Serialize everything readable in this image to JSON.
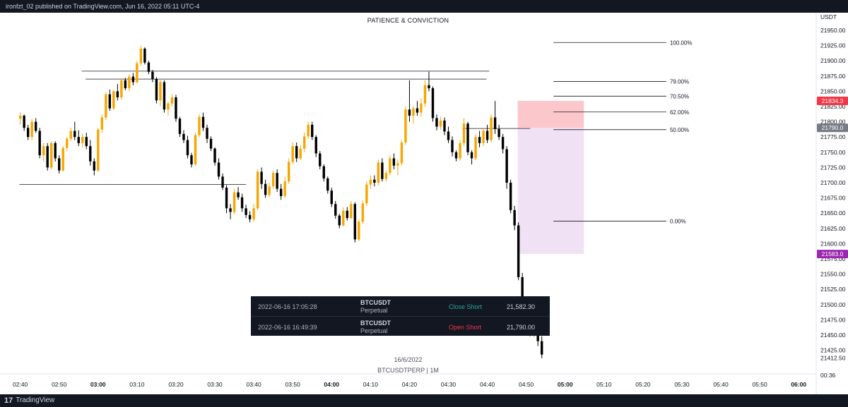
{
  "header": {
    "published_text": "ironfzt_02 published on TradingView.com, Jun 16, 2022 05:11 UTC-4"
  },
  "footer": {
    "brand": "TradingView"
  },
  "chart_data": {
    "type": "candlestick",
    "title": "PATIENCE & CONVICTION",
    "symbol_line": "BTCUSDTPERP | 1M",
    "date_line": "16/6/2022",
    "currency_label": "USDT",
    "time_label": "00:36",
    "ylim": [
      21410,
      21970
    ],
    "y_ticks": [
      21950,
      21925,
      21900,
      21875,
      21850,
      21825,
      21800,
      21775,
      21750,
      21725,
      21700,
      21675,
      21650,
      21625,
      21600,
      21575,
      21550,
      21525,
      21500,
      21475,
      21450,
      21425,
      21412.5
    ],
    "y_tick_labels": [
      "21950.00",
      "21925.00",
      "21900.00",
      "21875.00",
      "21850.00",
      "21825.00",
      "21800.00",
      "21775.00",
      "21750.00",
      "21725.00",
      "21700.00",
      "21675.00",
      "21650.00",
      "21625.00",
      "21600.00",
      "21575.00",
      "21550.00",
      "21525.00",
      "21500.00",
      "21475.00",
      "21450.00",
      "21425.00",
      "21412.50"
    ],
    "x_ticks": [
      {
        "label": "02:40",
        "x": 0,
        "bold": false
      },
      {
        "label": "02:50",
        "x": 10,
        "bold": false
      },
      {
        "label": "03:00",
        "x": 20,
        "bold": true
      },
      {
        "label": "03:10",
        "x": 30,
        "bold": false
      },
      {
        "label": "03:20",
        "x": 40,
        "bold": false
      },
      {
        "label": "03:30",
        "x": 50,
        "bold": false
      },
      {
        "label": "03:40",
        "x": 60,
        "bold": false
      },
      {
        "label": "03:50",
        "x": 70,
        "bold": false
      },
      {
        "label": "04:00",
        "x": 80,
        "bold": true
      },
      {
        "label": "04:10",
        "x": 90,
        "bold": false
      },
      {
        "label": "04:20",
        "x": 100,
        "bold": false
      },
      {
        "label": "04:30",
        "x": 110,
        "bold": false
      },
      {
        "label": "04:40",
        "x": 120,
        "bold": false
      },
      {
        "label": "04:50",
        "x": 130,
        "bold": false
      },
      {
        "label": "05:00",
        "x": 140,
        "bold": true
      },
      {
        "label": "05:10",
        "x": 150,
        "bold": false
      },
      {
        "label": "05:20",
        "x": 160,
        "bold": false
      },
      {
        "label": "05:30",
        "x": 170,
        "bold": false
      },
      {
        "label": "05:40",
        "x": 180,
        "bold": false
      },
      {
        "label": "05:50",
        "x": 190,
        "bold": false
      },
      {
        "label": "06:00",
        "x": 200,
        "bold": true
      }
    ],
    "x_range": [
      -5.2,
      204.5
    ],
    "price_badges": [
      {
        "label": "21834.3",
        "value": 21834.3,
        "color": "#f23645"
      },
      {
        "label": "21790.0",
        "value": 21790,
        "color": "#787b86"
      },
      {
        "label": "21583.0",
        "value": 21583,
        "color": "#9c27b0"
      }
    ],
    "fib_levels": [
      {
        "label": "100.00%",
        "value": 21930
      },
      {
        "label": "79.00%",
        "value": 21866
      },
      {
        "label": "70.50%",
        "value": 21842
      },
      {
        "label": "62.00%",
        "value": 21816
      },
      {
        "label": "50.00%",
        "value": 21787
      },
      {
        "label": "0.00%",
        "value": 21637
      }
    ],
    "fib_x_range": [
      137,
      166
    ],
    "horizontal_lines": [
      {
        "x1": 15.8,
        "x2": 120.5,
        "value": 21883
      },
      {
        "x1": 16.8,
        "x2": 119.8,
        "value": 21870
      },
      {
        "x1": -0.2,
        "x2": 58,
        "value": 21697
      },
      {
        "x1": 113.6,
        "x2": 131,
        "value": 21789
      }
    ],
    "short_position": {
      "x1": 127.8,
      "x2": 144.8,
      "entry": 21790,
      "stop": 21834.3,
      "target": 21583
    },
    "trades": [
      {
        "time": "2022-06-16 17:05:28",
        "symbol": "BTCUSDT",
        "type": "Perpetual",
        "action": "Close Short",
        "price": "21,582.30",
        "action_color": "#26a69a"
      },
      {
        "time": "2022-06-16 16:49:39",
        "symbol": "BTCUSDT",
        "type": "Perpetual",
        "action": "Open Short",
        "price": "21,790.00",
        "action_color": "#f23645"
      }
    ],
    "bull_color": "#f7a600",
    "bear_color": "#000000",
    "candles": [
      [
        21805,
        21815,
        21795,
        21810
      ],
      [
        21810,
        21812,
        21785,
        21790
      ],
      [
        21790,
        21795,
        21770,
        21775
      ],
      [
        21775,
        21805,
        21770,
        21800
      ],
      [
        21800,
        21806,
        21782,
        21785
      ],
      [
        21785,
        21790,
        21740,
        21745
      ],
      [
        21745,
        21765,
        21735,
        21760
      ],
      [
        21760,
        21765,
        21720,
        21725
      ],
      [
        21725,
        21768,
        21722,
        21765
      ],
      [
        21765,
        21768,
        21735,
        21740
      ],
      [
        21740,
        21745,
        21715,
        21720
      ],
      [
        21720,
        21760,
        21718,
        21757
      ],
      [
        21757,
        21775,
        21752,
        21772
      ],
      [
        21772,
        21790,
        21768,
        21785
      ],
      [
        21785,
        21800,
        21770,
        21775
      ],
      [
        21775,
        21786,
        21760,
        21765
      ],
      [
        21765,
        21780,
        21758,
        21775
      ],
      [
        21775,
        21782,
        21755,
        21760
      ],
      [
        21760,
        21770,
        21728,
        21735
      ],
      [
        21735,
        21740,
        21712,
        21720
      ],
      [
        21720,
        21790,
        21718,
        21787
      ],
      [
        21787,
        21812,
        21782,
        21807
      ],
      [
        21807,
        21848,
        21803,
        21845
      ],
      [
        21845,
        21853,
        21818,
        21822
      ],
      [
        21822,
        21852,
        21819,
        21850
      ],
      [
        21850,
        21862,
        21835,
        21840
      ],
      [
        21840,
        21872,
        21836,
        21868
      ],
      [
        21868,
        21872,
        21852,
        21855
      ],
      [
        21855,
        21878,
        21850,
        21874
      ],
      [
        21874,
        21880,
        21860,
        21865
      ],
      [
        21865,
        21900,
        21863,
        21896
      ],
      [
        21896,
        21925,
        21892,
        21920
      ],
      [
        21920,
        21922,
        21894,
        21897
      ],
      [
        21897,
        21900,
        21878,
        21882
      ],
      [
        21882,
        21885,
        21865,
        21870
      ],
      [
        21870,
        21873,
        21830,
        21835
      ],
      [
        21835,
        21870,
        21826,
        21865
      ],
      [
        21865,
        21868,
        21815,
        21820
      ],
      [
        21820,
        21833,
        21810,
        21830
      ],
      [
        21830,
        21845,
        21825,
        21840
      ],
      [
        21840,
        21844,
        21800,
        21805
      ],
      [
        21805,
        21808,
        21775,
        21780
      ],
      [
        21780,
        21786,
        21765,
        21770
      ],
      [
        21770,
        21777,
        21740,
        21745
      ],
      [
        21745,
        21749,
        21725,
        21730
      ],
      [
        21730,
        21782,
        21728,
        21778
      ],
      [
        21778,
        21812,
        21775,
        21808
      ],
      [
        21808,
        21815,
        21785,
        21790
      ],
      [
        21790,
        21795,
        21765,
        21772
      ],
      [
        21772,
        21776,
        21752,
        21756
      ],
      [
        21756,
        21758,
        21728,
        21733
      ],
      [
        21733,
        21740,
        21705,
        21710
      ],
      [
        21710,
        21715,
        21688,
        21692
      ],
      [
        21692,
        21696,
        21650,
        21658
      ],
      [
        21658,
        21665,
        21640,
        21652
      ],
      [
        21652,
        21690,
        21648,
        21684
      ],
      [
        21684,
        21693,
        21672,
        21676
      ],
      [
        21676,
        21682,
        21652,
        21658
      ],
      [
        21658,
        21664,
        21642,
        21647
      ],
      [
        21647,
        21653,
        21635,
        21640
      ],
      [
        21640,
        21665,
        21636,
        21658
      ],
      [
        21658,
        21722,
        21655,
        21718
      ],
      [
        21718,
        21725,
        21690,
        21698
      ],
      [
        21698,
        21705,
        21675,
        21680
      ],
      [
        21680,
        21700,
        21676,
        21694
      ],
      [
        21694,
        21720,
        21690,
        21716
      ],
      [
        21716,
        21722,
        21685,
        21690
      ],
      [
        21690,
        21698,
        21672,
        21678
      ],
      [
        21678,
        21710,
        21675,
        21702
      ],
      [
        21702,
        21740,
        21698,
        21734
      ],
      [
        21734,
        21766,
        21730,
        21760
      ],
      [
        21760,
        21766,
        21734,
        21740
      ],
      [
        21740,
        21762,
        21737,
        21756
      ],
      [
        21756,
        21782,
        21750,
        21776
      ],
      [
        21776,
        21800,
        21772,
        21795
      ],
      [
        21795,
        21800,
        21770,
        21775
      ],
      [
        21775,
        21778,
        21742,
        21748
      ],
      [
        21748,
        21752,
        21722,
        21727
      ],
      [
        21727,
        21730,
        21702,
        21707
      ],
      [
        21707,
        21710,
        21682,
        21687
      ],
      [
        21687,
        21692,
        21660,
        21665
      ],
      [
        21665,
        21670,
        21641,
        21646
      ],
      [
        21646,
        21649,
        21625,
        21630
      ],
      [
        21630,
        21660,
        21628,
        21654
      ],
      [
        21654,
        21660,
        21638,
        21642
      ],
      [
        21642,
        21670,
        21640,
        21665
      ],
      [
        21665,
        21668,
        21602,
        21607
      ],
      [
        21607,
        21640,
        21604,
        21636
      ],
      [
        21636,
        21671,
        21632,
        21666
      ],
      [
        21666,
        21702,
        21662,
        21697
      ],
      [
        21697,
        21712,
        21690,
        21705
      ],
      [
        21705,
        21712,
        21694,
        21700
      ],
      [
        21700,
        21738,
        21696,
        21733
      ],
      [
        21733,
        21740,
        21702,
        21706
      ],
      [
        21706,
        21720,
        21702,
        21716
      ],
      [
        21716,
        21745,
        21712,
        21740
      ],
      [
        21740,
        21748,
        21722,
        21728
      ],
      [
        21728,
        21738,
        21712,
        21732
      ],
      [
        21732,
        21770,
        21728,
        21766
      ],
      [
        21766,
        21825,
        21762,
        21820
      ],
      [
        21820,
        21868,
        21800,
        21810
      ],
      [
        21810,
        21826,
        21797,
        21822
      ],
      [
        21822,
        21834,
        21810,
        21815
      ],
      [
        21815,
        21838,
        21808,
        21830
      ],
      [
        21830,
        21868,
        21825,
        21860
      ],
      [
        21860,
        21882,
        21850,
        21855
      ],
      [
        21855,
        21858,
        21800,
        21806
      ],
      [
        21806,
        21812,
        21786,
        21792
      ],
      [
        21792,
        21808,
        21787,
        21802
      ],
      [
        21802,
        21807,
        21778,
        21784
      ],
      [
        21784,
        21792,
        21765,
        21770
      ],
      [
        21770,
        21776,
        21743,
        21750
      ],
      [
        21750,
        21753,
        21735,
        21740
      ],
      [
        21740,
        21770,
        21736,
        21765
      ],
      [
        21765,
        21806,
        21760,
        21797
      ],
      [
        21797,
        21800,
        21745,
        21750
      ],
      [
        21750,
        21753,
        21730,
        21740
      ],
      [
        21740,
        21780,
        21737,
        21775
      ],
      [
        21775,
        21785,
        21758,
        21765
      ],
      [
        21765,
        21790,
        21760,
        21785
      ],
      [
        21785,
        21795,
        21765,
        21770
      ],
      [
        21770,
        21812,
        21766,
        21807
      ],
      [
        21807,
        21834,
        21780,
        21788
      ],
      [
        21788,
        21795,
        21770,
        21775
      ],
      [
        21775,
        21780,
        21748,
        21755
      ],
      [
        21755,
        21760,
        21690,
        21700
      ],
      [
        21700,
        21705,
        21650,
        21655
      ],
      [
        21655,
        21662,
        21622,
        21630
      ],
      [
        21630,
        21635,
        21540,
        21545
      ],
      [
        21545,
        21552,
        21495,
        21500
      ],
      [
        21500,
        21508,
        21455,
        21462
      ],
      [
        21462,
        21475,
        21448,
        21455
      ],
      [
        21455,
        21468,
        21446,
        21462
      ],
      [
        21462,
        21472,
        21432,
        21440
      ],
      [
        21440,
        21448,
        21412,
        21418
      ]
    ]
  }
}
